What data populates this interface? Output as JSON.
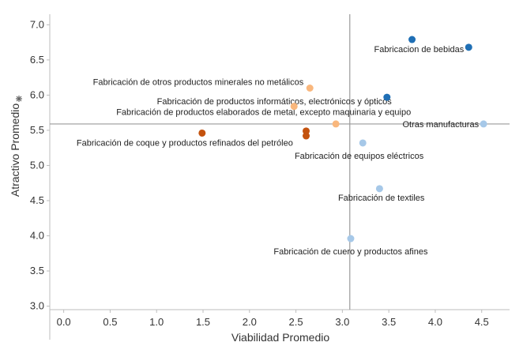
{
  "chart_data": {
    "type": "scatter",
    "xlabel": "Viabilidad Promedio",
    "ylabel": "Atractivo Promedio",
    "ylabel_icon": "sort-asterisk-icon",
    "xlim": [
      -0.15,
      4.8
    ],
    "ylim": [
      2.95,
      7.15
    ],
    "x_ticks": [
      "0.0",
      "0.5",
      "1.0",
      "1.5",
      "2.0",
      "2.5",
      "3.0",
      "3.5",
      "4.0",
      "4.5"
    ],
    "x_tick_values": [
      0,
      0.5,
      1.0,
      1.5,
      2.0,
      2.5,
      3.0,
      3.5,
      4.0,
      4.5
    ],
    "y_ticks": [
      "3.0",
      "3.5",
      "4.0",
      "4.5",
      "5.0",
      "5.5",
      "6.0",
      "6.5",
      "7.0"
    ],
    "y_tick_values": [
      3.0,
      3.5,
      4.0,
      4.5,
      5.0,
      5.5,
      6.0,
      6.5,
      7.0
    ],
    "reference_lines": {
      "x": 3.08,
      "y": 5.59
    },
    "grid": false,
    "colors": {
      "dark_blue": "#1f6fb5",
      "light_blue": "#a6c8e8",
      "orange_dark": "#c4520e",
      "orange_light": "#f9b77d",
      "reference_line": "#9a9a9a",
      "axis": "#bdbdbd"
    },
    "points": [
      {
        "x": 3.75,
        "y": 6.79,
        "color": "#1f6fb5",
        "label": ""
      },
      {
        "x": 4.36,
        "y": 6.68,
        "color": "#1f6fb5",
        "label": "Fabricacion de bebidas"
      },
      {
        "x": 2.65,
        "y": 6.1,
        "color": "#f9b77d",
        "label": "Fabricación de otros productos minerales no metálicos"
      },
      {
        "x": 3.48,
        "y": 5.97,
        "color": "#1f6fb5",
        "label": "Fabricación de productos informáticos, electrónicos y ópticos"
      },
      {
        "x": 2.48,
        "y": 5.84,
        "color": "#f9b77d",
        "label": "Fabricación de productos elaborados de metal, excepto maquinaria y equipo"
      },
      {
        "x": 2.93,
        "y": 5.59,
        "color": "#f9b77d",
        "label": ""
      },
      {
        "x": 4.52,
        "y": 5.59,
        "color": "#a6c8e8",
        "label": "Otras manufacturas"
      },
      {
        "x": 1.49,
        "y": 5.46,
        "color": "#c4520e",
        "label": "Fabricación de coque y productos refinados del petróleo"
      },
      {
        "x": 2.61,
        "y": 5.49,
        "color": "#c4520e",
        "label": ""
      },
      {
        "x": 2.61,
        "y": 5.42,
        "color": "#c4520e",
        "label": ""
      },
      {
        "x": 3.22,
        "y": 5.32,
        "color": "#a6c8e8",
        "label": "Fabricación de equipos eléctricos"
      },
      {
        "x": 3.4,
        "y": 4.67,
        "color": "#a6c8e8",
        "label": "Fabricación de textiles"
      },
      {
        "x": 3.09,
        "y": 3.96,
        "color": "#a6c8e8",
        "label": "Fabricación de cuero y productos afines"
      }
    ]
  }
}
